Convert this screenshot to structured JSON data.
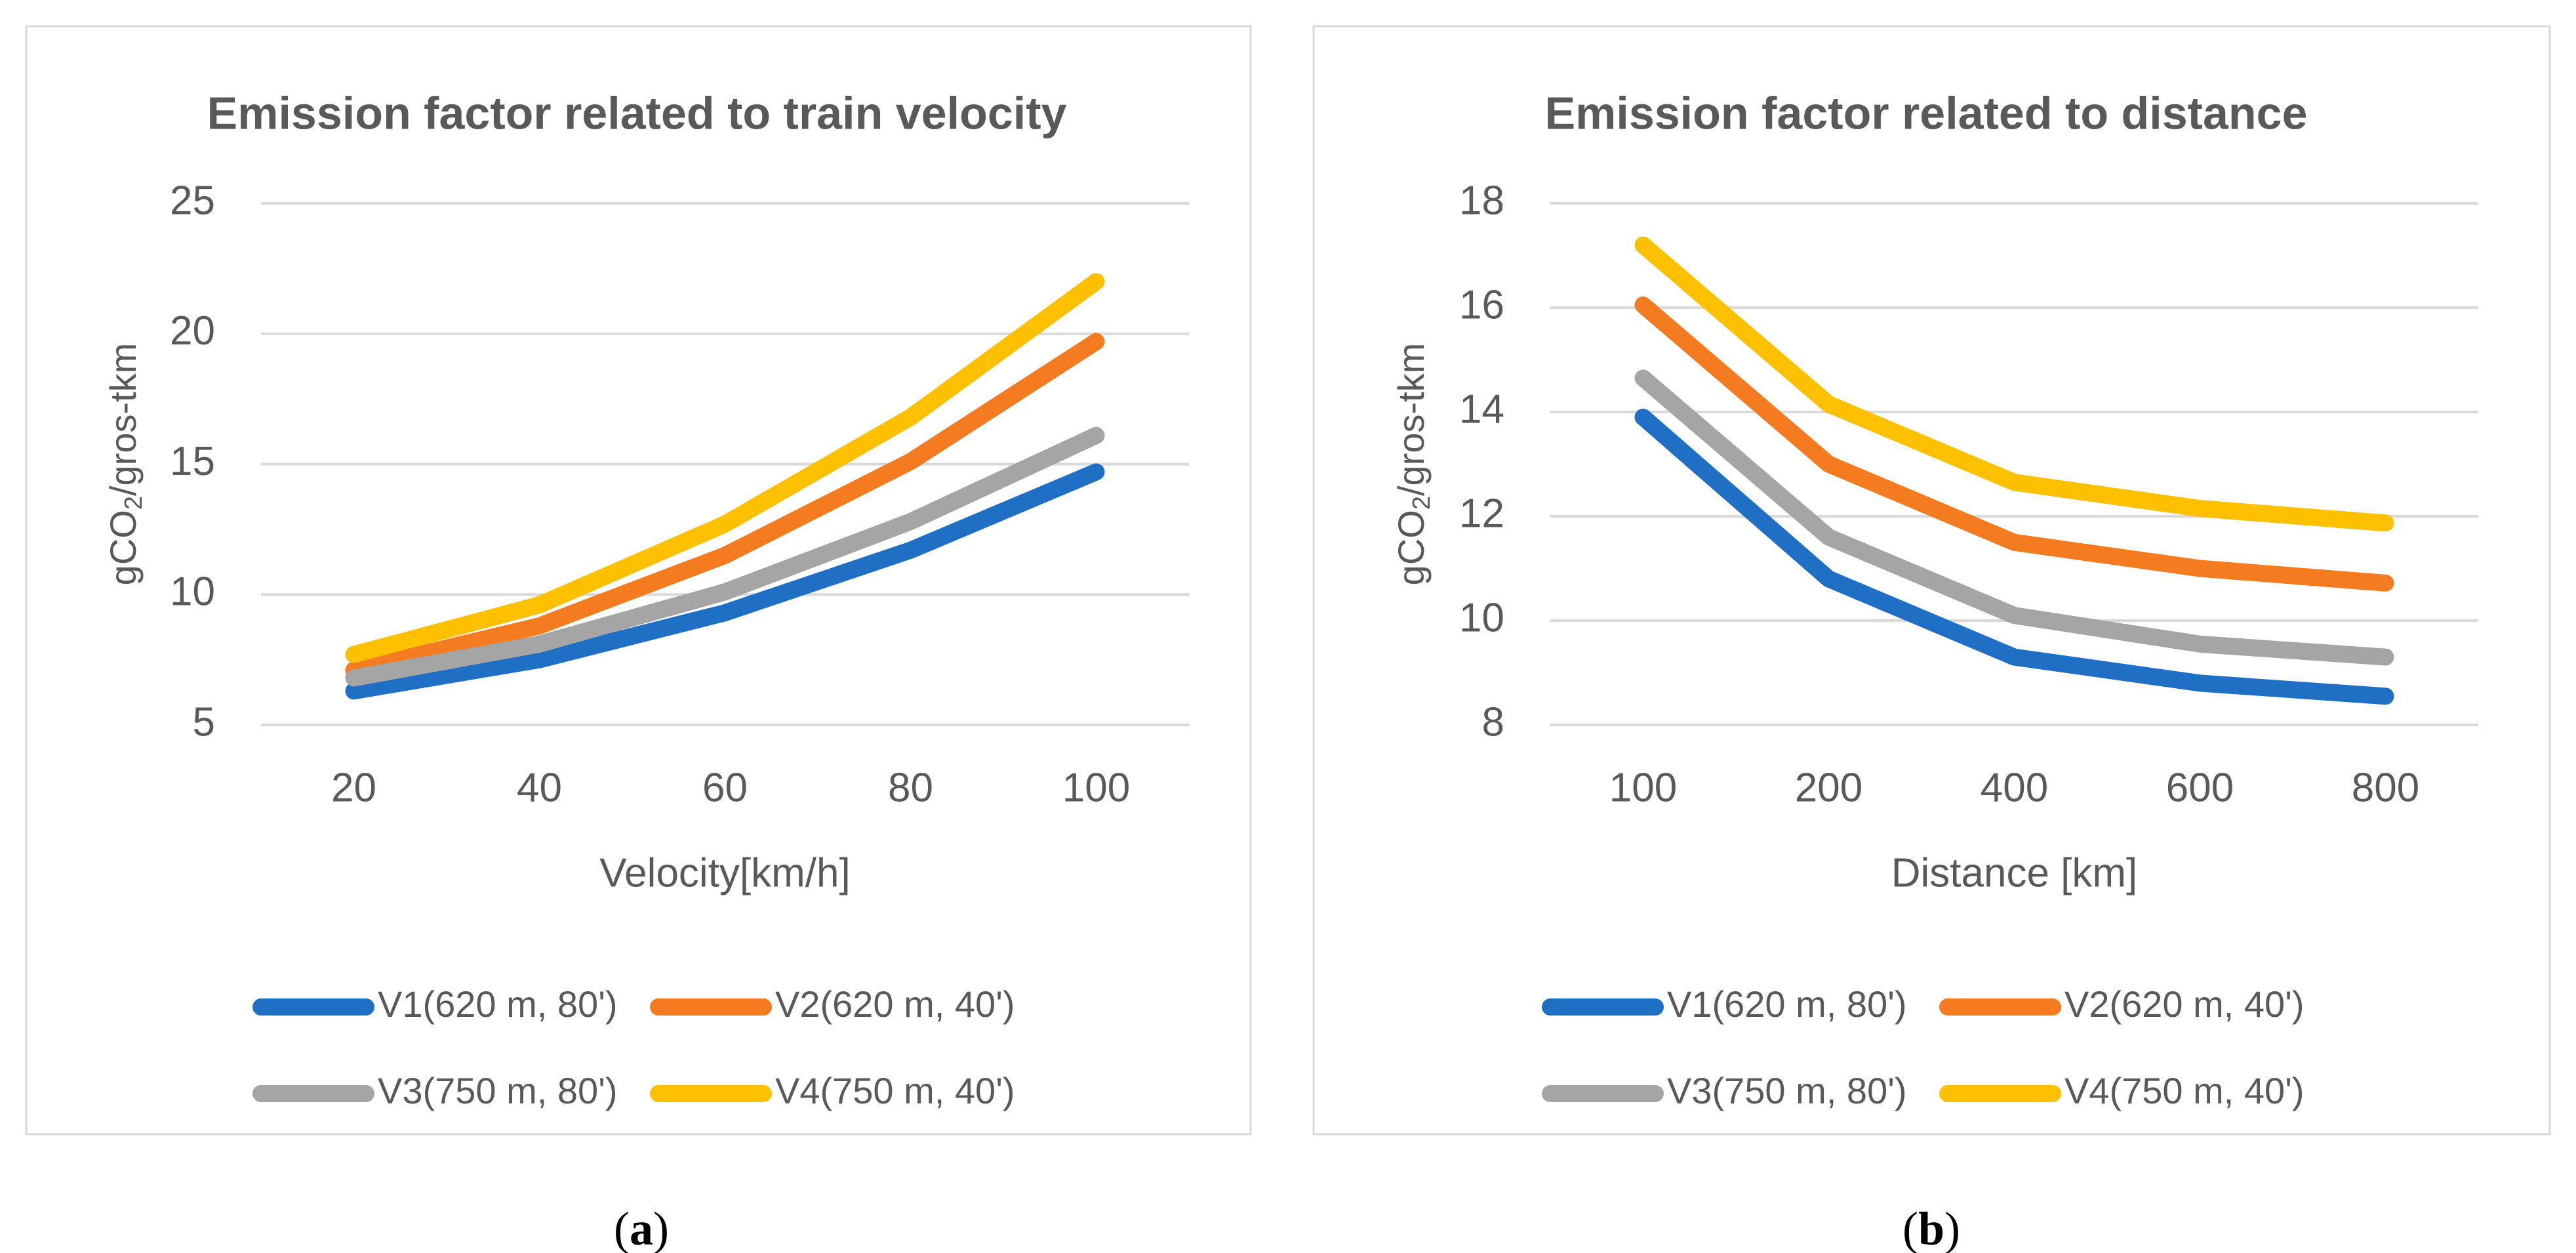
{
  "chart_data": [
    {
      "type": "line",
      "title": "Emission factor related to train velocity",
      "xlabel": "Velocity[km/h]",
      "ylabel_base": "gCO",
      "ylabel_sub": "2",
      "ylabel_rest": "/gros-tkm",
      "categories": [
        "20",
        "40",
        "60",
        "80",
        "100"
      ],
      "ylim": [
        5,
        25
      ],
      "yticks": [
        "5",
        "10",
        "15",
        "20",
        "25"
      ],
      "grid": true,
      "legend_position": "bottom",
      "series": [
        {
          "name": "V1(620 m, 80')",
          "color": "#1f6fc4",
          "values": [
            6.3,
            7.5,
            9.3,
            11.7,
            14.7
          ]
        },
        {
          "name": "V2(620 m, 40')",
          "color": "#f47b20",
          "values": [
            7.1,
            8.8,
            11.5,
            15.1,
            19.7
          ]
        },
        {
          "name": "V3(750 m, 80')",
          "color": "#a5a5a5",
          "values": [
            6.8,
            8.1,
            10.1,
            12.8,
            16.1
          ]
        },
        {
          "name": "V4(750 m, 40')",
          "color": "#ffc000",
          "values": [
            7.7,
            9.6,
            12.7,
            16.8,
            22.0
          ]
        }
      ],
      "caption_open": "(",
      "caption_letter": "a",
      "caption_close": ")"
    },
    {
      "type": "line",
      "title": "Emission factor related to distance",
      "xlabel": "Distance [km]",
      "ylabel_base": "gCO",
      "ylabel_sub": "2",
      "ylabel_rest": "/gros-tkm",
      "categories": [
        "100",
        "200",
        "400",
        "600",
        "800"
      ],
      "ylim": [
        8,
        18
      ],
      "yticks": [
        "8",
        "10",
        "12",
        "14",
        "16",
        "18"
      ],
      "grid": true,
      "legend_position": "bottom",
      "series": [
        {
          "name": "V1(620 m, 80')",
          "color": "#1f6fc4",
          "values": [
            13.9,
            10.8,
            9.3,
            8.8,
            8.55
          ]
        },
        {
          "name": "V2(620 m, 40')",
          "color": "#f47b20",
          "values": [
            16.05,
            13.0,
            11.5,
            11.0,
            10.72
          ]
        },
        {
          "name": "V3(750 m, 80')",
          "color": "#a5a5a5",
          "values": [
            14.65,
            11.6,
            10.1,
            9.55,
            9.3
          ]
        },
        {
          "name": "V4(750 m, 40')",
          "color": "#ffc000",
          "values": [
            17.2,
            14.15,
            12.65,
            12.15,
            11.87
          ]
        }
      ],
      "caption_open": "(",
      "caption_letter": "b",
      "caption_close": ")"
    }
  ]
}
